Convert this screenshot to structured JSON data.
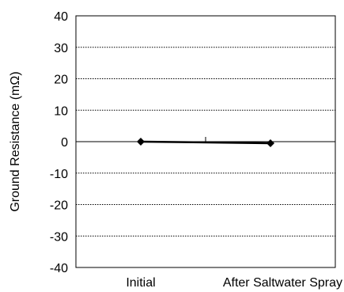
{
  "chart_data": {
    "type": "line",
    "categories": [
      "Initial",
      "After Saltwater Spray"
    ],
    "series": [
      {
        "values": [
          0,
          -0.5
        ],
        "color": "#000000",
        "marker": "diamond"
      }
    ],
    "title": "",
    "xlabel": "",
    "ylabel": "Ground Resistance (mΩ)",
    "ylim": [
      -40,
      40
    ],
    "yticks": [
      "40",
      "30",
      "20",
      "10",
      "0",
      "-10",
      "-20",
      "-30",
      "-40"
    ],
    "grid": "horizontal-dotted",
    "legend": "none"
  }
}
